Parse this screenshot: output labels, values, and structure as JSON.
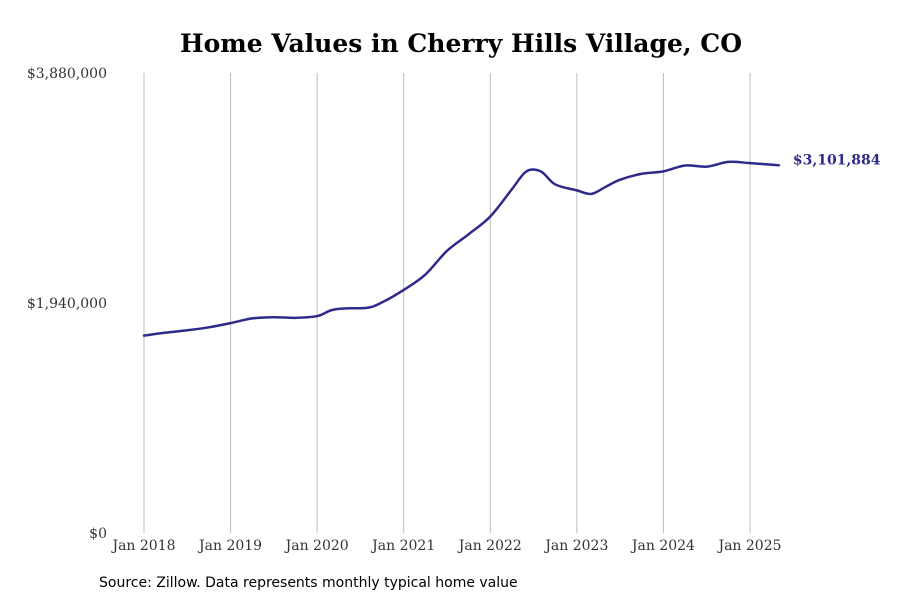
{
  "chart_data": {
    "type": "line",
    "title": "Home Values in Cherry Hills Village, CO",
    "xlabel": "",
    "ylabel": "",
    "ylim": [
      0,
      3880000
    ],
    "y_ticks": [
      {
        "value": 0,
        "label": "$0"
      },
      {
        "value": 1940000,
        "label": "$1,940,000"
      },
      {
        "value": 3880000,
        "label": "$3,880,000"
      }
    ],
    "x_ticks": [
      {
        "value": "2018-01",
        "label": "Jan 2018"
      },
      {
        "value": "2019-01",
        "label": "Jan 2019"
      },
      {
        "value": "2020-01",
        "label": "Jan 2020"
      },
      {
        "value": "2021-01",
        "label": "Jan 2021"
      },
      {
        "value": "2022-01",
        "label": "Jan 2022"
      },
      {
        "value": "2023-01",
        "label": "Jan 2023"
      },
      {
        "value": "2024-01",
        "label": "Jan 2024"
      },
      {
        "value": "2025-01",
        "label": "Jan 2025"
      }
    ],
    "grid": "vertical",
    "series": [
      {
        "color": "#2e2a8c",
        "end_label": "$3,101,884",
        "points": [
          {
            "x": "2018-01",
            "y": 1665000
          },
          {
            "x": "2018-04",
            "y": 1690000
          },
          {
            "x": "2018-07",
            "y": 1710000
          },
          {
            "x": "2018-10",
            "y": 1735000
          },
          {
            "x": "2019-01",
            "y": 1770000
          },
          {
            "x": "2019-04",
            "y": 1810000
          },
          {
            "x": "2019-07",
            "y": 1820000
          },
          {
            "x": "2019-10",
            "y": 1815000
          },
          {
            "x": "2020-01",
            "y": 1830000
          },
          {
            "x": "2020-03",
            "y": 1880000
          },
          {
            "x": "2020-05",
            "y": 1895000
          },
          {
            "x": "2020-08",
            "y": 1900000
          },
          {
            "x": "2020-10",
            "y": 1945000
          },
          {
            "x": "2021-01",
            "y": 2050000
          },
          {
            "x": "2021-04",
            "y": 2180000
          },
          {
            "x": "2021-07",
            "y": 2380000
          },
          {
            "x": "2021-10",
            "y": 2520000
          },
          {
            "x": "2022-01",
            "y": 2670000
          },
          {
            "x": "2022-04",
            "y": 2900000
          },
          {
            "x": "2022-06",
            "y": 3050000
          },
          {
            "x": "2022-08",
            "y": 3050000
          },
          {
            "x": "2022-10",
            "y": 2940000
          },
          {
            "x": "2023-01",
            "y": 2890000
          },
          {
            "x": "2023-03",
            "y": 2860000
          },
          {
            "x": "2023-05",
            "y": 2920000
          },
          {
            "x": "2023-07",
            "y": 2980000
          },
          {
            "x": "2023-10",
            "y": 3030000
          },
          {
            "x": "2024-01",
            "y": 3050000
          },
          {
            "x": "2024-04",
            "y": 3100000
          },
          {
            "x": "2024-07",
            "y": 3090000
          },
          {
            "x": "2024-10",
            "y": 3130000
          },
          {
            "x": "2025-01",
            "y": 3120000
          },
          {
            "x": "2025-05",
            "y": 3101884
          }
        ]
      }
    ]
  },
  "footer": {
    "source": "Source: Zillow. Data represents monthly typical home value"
  }
}
